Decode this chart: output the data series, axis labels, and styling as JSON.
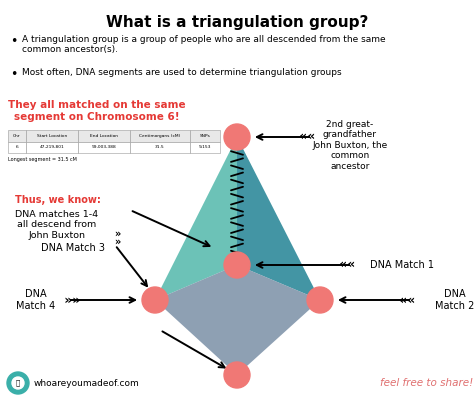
{
  "title": "What is a triangulation group?",
  "bullet1": "A triangulation group is a group of people who are all descended from the same\ncommon ancestor(s).",
  "bullet2": "Most often, DNA segments are used to determine triangulation groups",
  "red_text1": "They all matched on the same\nsegment on Chromosome 6!",
  "red_text2": "Thus, we know:",
  "black_text1": "DNA matches 1-4\nall descend from\nJohn Buxton",
  "ancestor_label": "2nd great-\ngrandfather\nJohn Buxton, the\ncommon\nancestor",
  "match1_label": "DNA Match 1",
  "match2_label": "DNA\nMatch 2",
  "match3_label": "DNA Match 3",
  "match4_label": "DNA\nMatch 4",
  "website": "whoareyoumadeof.com",
  "tagline": "feel free to share!",
  "bg_color": "#ffffff",
  "teal_light": "#5cbcb0",
  "teal_dark": "#2e8a9a",
  "gray_blue": "#7a8fa6",
  "node_color": "#f07875",
  "red_text_color": "#e53935",
  "tagline_color": "#e07070",
  "table_headers": [
    "Chr",
    "Start Location",
    "End Location",
    "Centimorgans (cM)",
    "SNPs"
  ],
  "table_row": [
    "6",
    "47,219,801",
    "99,003,388",
    "31.5",
    "9,153"
  ],
  "table_note": "Longest segment = 31.5 cM"
}
